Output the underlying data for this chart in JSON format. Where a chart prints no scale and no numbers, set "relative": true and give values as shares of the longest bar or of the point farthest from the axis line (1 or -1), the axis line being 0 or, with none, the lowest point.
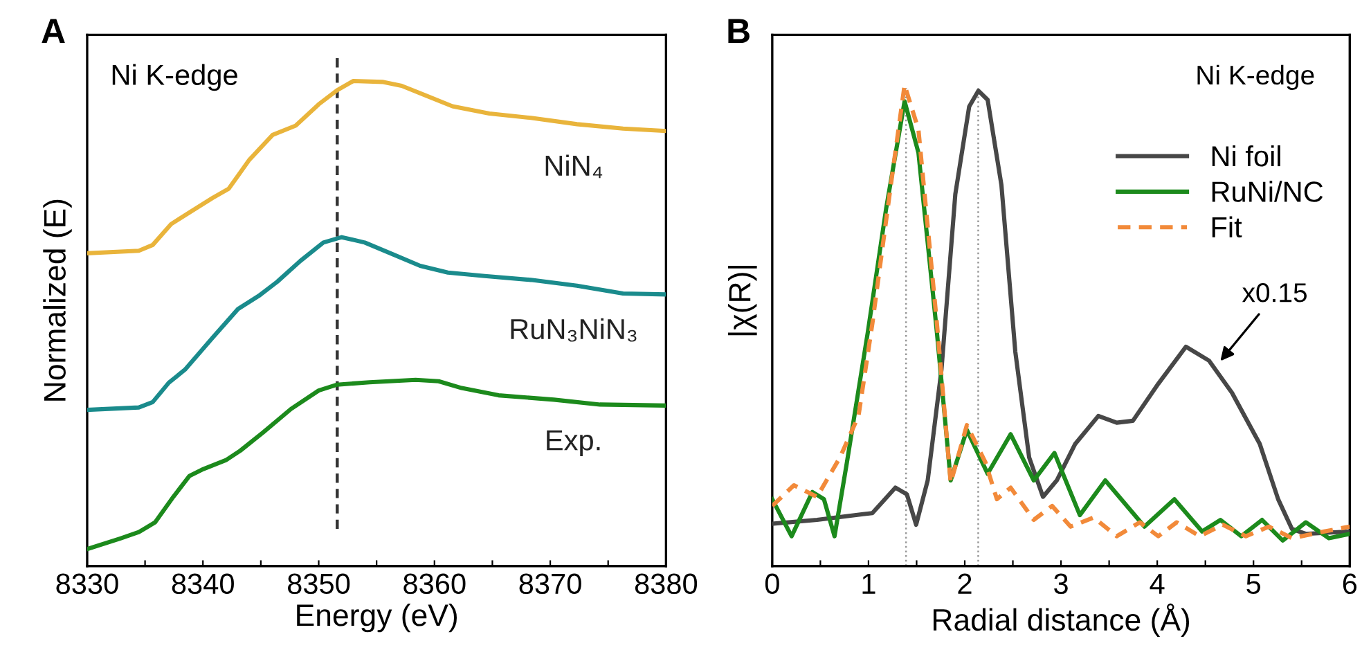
{
  "chart_data": [
    {
      "type": "line",
      "title": "A",
      "xlabel": "Energy (eV)",
      "ylabel": "Normalized (E)",
      "relative": true,
      "tick_labels": "x",
      "grid": false,
      "legend": false,
      "xlim": [
        8330,
        8380
      ],
      "xticks": [
        8330,
        {
          "value": 8335,
          "label": null
        },
        8340,
        {
          "value": 8345,
          "label": null
        },
        8350,
        {
          "value": 8355,
          "label": null
        },
        8360,
        {
          "value": 8365,
          "label": null
        },
        8370,
        {
          "value": 8375,
          "label": null
        },
        8380
      ],
      "annotations": [
        "Ni K-edge"
      ],
      "ref_lines": [
        {
          "axis": "x",
          "value": 8351.6,
          "label": null,
          "color": "#333333",
          "line_style": "dashed"
        }
      ],
      "series": [
        {
          "name": "NiN₄",
          "color": "#e9b43b",
          "x": [
            8330,
            8334.46,
            8335.66,
            8337.25,
            8338.84,
            8340.84,
            8342.23,
            8344.02,
            8346.02,
            8348.01,
            8350.0,
            8351.59,
            8352.99,
            8355.58,
            8357.17,
            8359.16,
            8361.55,
            8364.74,
            8368.33,
            8372.31,
            8376.29,
            8380
          ],
          "values": [
            0.645,
            0.65,
            0.662,
            0.705,
            0.729,
            0.759,
            0.778,
            0.838,
            0.889,
            0.908,
            0.952,
            0.981,
            1.0,
            0.998,
            0.99,
            0.971,
            0.948,
            0.933,
            0.924,
            0.911,
            0.902,
            0.897
          ]
        },
        {
          "name": "RuN₃NiN₃",
          "color": "#1a8b8c",
          "x": [
            8330,
            8334.46,
            8335.66,
            8337.05,
            8338.45,
            8340.84,
            8343.03,
            8344.82,
            8346.41,
            8348.41,
            8350.4,
            8351.99,
            8353.98,
            8356.37,
            8358.76,
            8361.16,
            8364.34,
            8368.33,
            8372.31,
            8376.29,
            8380
          ],
          "values": [
            0.322,
            0.327,
            0.338,
            0.378,
            0.405,
            0.471,
            0.53,
            0.557,
            0.586,
            0.629,
            0.667,
            0.678,
            0.667,
            0.643,
            0.619,
            0.605,
            0.598,
            0.59,
            0.578,
            0.562,
            0.56
          ]
        },
        {
          "name": "Exp.",
          "color": "#1c8a1c",
          "x": [
            8330,
            8332.87,
            8334.46,
            8335.86,
            8337.45,
            8338.84,
            8340.04,
            8342.03,
            8343.23,
            8345.22,
            8347.61,
            8350.0,
            8351.59,
            8354.38,
            8358.37,
            8360.36,
            8362.35,
            8365.54,
            8370.32,
            8374.3,
            8380
          ],
          "values": [
            0.035,
            0.057,
            0.07,
            0.09,
            0.143,
            0.186,
            0.2,
            0.219,
            0.238,
            0.276,
            0.324,
            0.362,
            0.374,
            0.379,
            0.384,
            0.381,
            0.367,
            0.352,
            0.343,
            0.333,
            0.331
          ]
        }
      ]
    },
    {
      "type": "line",
      "title": "B",
      "xlabel": "Radial distance (Å)",
      "ylabel": "|χ(R)|",
      "relative": true,
      "tick_labels": "x",
      "grid": false,
      "legend": "right",
      "xlim": [
        0,
        6
      ],
      "xticks": [
        0,
        {
          "value": 0.5,
          "label": null
        },
        1,
        {
          "value": 1.5,
          "label": null
        },
        2,
        {
          "value": 2.5,
          "label": null
        },
        3,
        {
          "value": 3.5,
          "label": null
        },
        4,
        {
          "value": 4.5,
          "label": null
        },
        5,
        {
          "value": 5.5,
          "label": null
        },
        6
      ],
      "annotations": [
        "Ni K-edge",
        {
          "text": "x0.15",
          "x": 4.63,
          "y": 0.42
        }
      ],
      "ref_lines": [
        {
          "axis": "x",
          "value": 1.39,
          "label": null,
          "color": "#999999",
          "line_style": "dotted"
        },
        {
          "axis": "x",
          "value": 2.14,
          "label": null,
          "color": "#999999",
          "line_style": "dotted"
        }
      ],
      "series": [
        {
          "name": "Ni foil",
          "color": "#474747",
          "x": [
            0,
            0.465,
            0.944,
            1.04,
            1.279,
            1.399,
            1.495,
            1.615,
            1.758,
            1.902,
            2.046,
            2.142,
            2.238,
            2.381,
            2.525,
            2.669,
            2.813,
            2.956,
            3.148,
            3.388,
            3.579,
            3.747,
            4.011,
            4.298,
            4.538,
            4.777,
            5.065,
            5.256,
            5.4,
            5.544,
            6.0
          ],
          "values": [
            0.088,
            0.096,
            0.108,
            0.11,
            0.163,
            0.149,
            0.086,
            0.178,
            0.408,
            0.773,
            0.955,
            0.988,
            0.969,
            0.792,
            0.446,
            0.226,
            0.144,
            0.178,
            0.254,
            0.312,
            0.298,
            0.302,
            0.379,
            0.456,
            0.427,
            0.36,
            0.254,
            0.139,
            0.077,
            0.067,
            0.072
          ]
        },
        {
          "name": "RuNi/NC",
          "color": "#1c8a1c",
          "x": [
            0,
            0.201,
            0.417,
            0.537,
            0.647,
            0.776,
            0.992,
            1.184,
            1.375,
            1.519,
            1.711,
            1.854,
            2.022,
            2.238,
            2.477,
            2.717,
            2.932,
            3.196,
            3.46,
            3.867,
            4.178,
            4.466,
            4.657,
            4.873,
            5.089,
            5.304,
            5.544,
            5.783,
            6.0
          ],
          "values": [
            0.139,
            0.062,
            0.154,
            0.139,
            0.062,
            0.216,
            0.485,
            0.744,
            0.966,
            0.859,
            0.485,
            0.178,
            0.283,
            0.192,
            0.274,
            0.178,
            0.235,
            0.106,
            0.178,
            0.082,
            0.139,
            0.072,
            0.096,
            0.062,
            0.096,
            0.053,
            0.091,
            0.058,
            0.067
          ]
        },
        {
          "name": "Fit",
          "color": "#f28a3a",
          "line_style": "dashed",
          "x": [
            0,
            0.225,
            0.465,
            0.704,
            0.896,
            1.04,
            1.232,
            1.375,
            1.519,
            1.711,
            1.854,
            2.022,
            2.214,
            2.334,
            2.477,
            2.717,
            2.908,
            3.1,
            3.34,
            3.579,
            3.819,
            4.011,
            4.202,
            4.442,
            4.681,
            4.921,
            5.16,
            5.4,
            5.735,
            6.0
          ],
          "values": [
            0.125,
            0.168,
            0.144,
            0.226,
            0.312,
            0.504,
            0.792,
            1.0,
            0.907,
            0.504,
            0.173,
            0.293,
            0.216,
            0.139,
            0.163,
            0.096,
            0.125,
            0.082,
            0.101,
            0.062,
            0.091,
            0.062,
            0.091,
            0.062,
            0.086,
            0.062,
            0.082,
            0.058,
            0.072,
            0.082
          ]
        }
      ]
    }
  ]
}
